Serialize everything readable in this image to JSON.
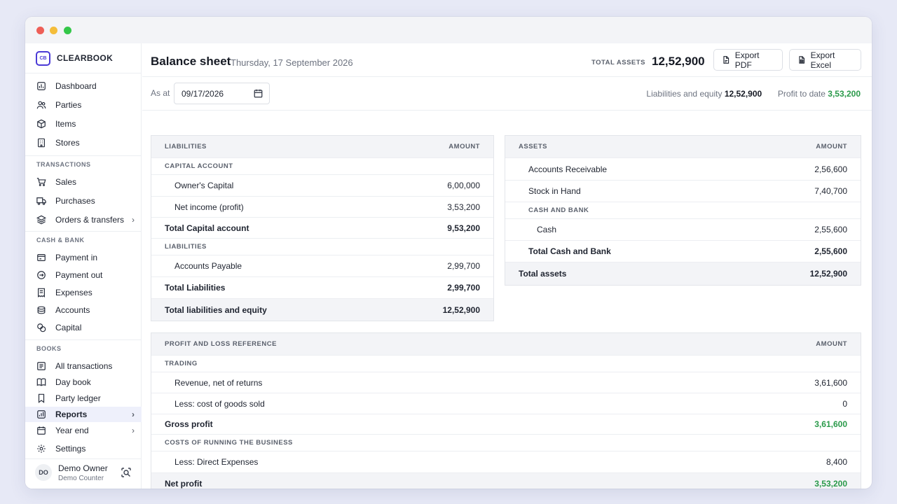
{
  "brand": {
    "logo": "CB",
    "name": "CLEARBOOK"
  },
  "nav": {
    "top": [
      {
        "label": "Dashboard",
        "icon": "dashboard-icon"
      },
      {
        "label": "Parties",
        "icon": "users-icon"
      },
      {
        "label": "Items",
        "icon": "box-icon"
      },
      {
        "label": "Stores",
        "icon": "building-icon"
      }
    ],
    "transactions_title": "TRANSACTIONS",
    "transactions": [
      {
        "label": "Sales",
        "icon": "cart-icon"
      },
      {
        "label": "Purchases",
        "icon": "truck-icon"
      },
      {
        "label": "Orders & transfers",
        "icon": "layers-icon"
      }
    ],
    "cash_title": "CASH & BANK",
    "cash": [
      {
        "label": "Payment in",
        "icon": "receipt-in-icon"
      },
      {
        "label": "Payment out",
        "icon": "payment-out-icon"
      },
      {
        "label": "Expenses",
        "icon": "expense-icon"
      },
      {
        "label": "Accounts",
        "icon": "wallet-icon"
      },
      {
        "label": "Capital",
        "icon": "coins-icon"
      }
    ],
    "books_title": "BOOKS",
    "books": [
      {
        "label": "All transactions",
        "icon": "list-icon"
      },
      {
        "label": "Day book",
        "icon": "book-icon"
      },
      {
        "label": "Party ledger",
        "icon": "bookmark-icon"
      },
      {
        "label": "Reports",
        "icon": "report-icon"
      },
      {
        "label": "Year end",
        "icon": "calendar-icon"
      },
      {
        "label": "Settings",
        "icon": "gear-icon"
      }
    ]
  },
  "user": {
    "initials": "DO",
    "name": "Demo Owner",
    "subtitle": "Demo Counter"
  },
  "header": {
    "title": "Balance sheet",
    "date": "Thursday, 17 September 2026",
    "total_assets_label": "TOTAL ASSETS",
    "total_assets_value": "12,52,900",
    "export_pdf": "Export PDF",
    "export_excel": "Export Excel"
  },
  "toolbar": {
    "as_at_label": "As at",
    "as_at_value": "09/17/2026",
    "liab_equity_label": "Liabilities and equity",
    "liab_equity_value": "12,52,900",
    "profit_label": "Profit to date",
    "profit_value": "3,53,200"
  },
  "liabilities": {
    "header": "LIABILITIES",
    "amount_header": "AMOUNT",
    "capital_section": "CAPITAL ACCOUNT",
    "owners_capital_label": "Owner's Capital",
    "owners_capital_value": "6,00,000",
    "net_income_label": "Net income (profit)",
    "net_income_value": "3,53,200",
    "total_capital_label": "Total Capital account",
    "total_capital_value": "9,53,200",
    "liab_section": "LIABILITIES",
    "payable_label": "Accounts Payable",
    "payable_value": "2,99,700",
    "total_liab_label": "Total Liabilities",
    "total_liab_value": "2,99,700",
    "grand_label": "Total liabilities and equity",
    "grand_value": "12,52,900"
  },
  "assets": {
    "header": "ASSETS",
    "amount_header": "AMOUNT",
    "receivable_label": "Accounts Receivable",
    "receivable_value": "2,56,600",
    "stock_label": "Stock in Hand",
    "stock_value": "7,40,700",
    "cash_section": "CASH AND BANK",
    "cash_label": "Cash",
    "cash_value": "2,55,600",
    "total_cash_label": "Total Cash and Bank",
    "total_cash_value": "2,55,600",
    "grand_label": "Total assets",
    "grand_value": "12,52,900"
  },
  "pnl": {
    "header": "PROFIT AND LOSS REFERENCE",
    "amount_header": "AMOUNT",
    "trading_section": "TRADING",
    "revenue_label": "Revenue, net of returns",
    "revenue_value": "3,61,600",
    "cogs_label": "Less: cost of goods sold",
    "cogs_value": "0",
    "gross_label": "Gross profit",
    "gross_value": "3,61,600",
    "costs_section": "COSTS OF RUNNING THE BUSINESS",
    "direct_label": "Less: Direct Expenses",
    "direct_value": "8,400",
    "net_label": "Net profit",
    "net_value": "3,53,200"
  },
  "colors": {
    "accent": "#4b3ad6",
    "positive": "#2a9a4a",
    "active_bg": "#eef0fb"
  }
}
